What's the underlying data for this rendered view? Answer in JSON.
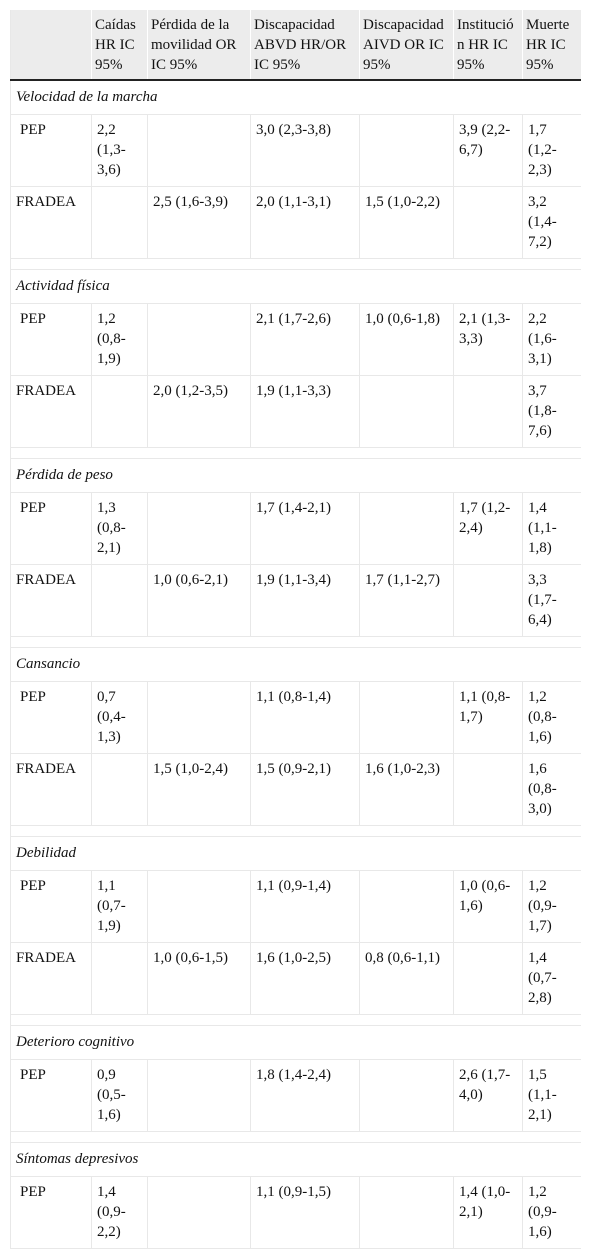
{
  "headers": [
    "",
    "Caídas HR IC 95%",
    "Pérdida de la movilidad OR IC 95%",
    "Discapacidad ABVD HR/OR IC 95%",
    "Discapacidad AIVD OR IC 95%",
    "Institución HR IC 95%",
    "Muerte HR IC 95%"
  ],
  "groups": [
    {
      "title": "Velocidad de la marcha",
      "rows": [
        {
          "label": "PEP",
          "cells": [
            "2,2 (1,3-3,6)",
            "",
            "3,0 (2,3-3,8)",
            "",
            "3,9 (2,2-6,7)",
            "1,7 (1,2-2,3)"
          ]
        },
        {
          "label": "FRADEA",
          "cells": [
            "",
            "2,5 (1,6-3,9)",
            "2,0 (1,1-3,1)",
            "1,5 (1,0-2,2)",
            "",
            "3,2 (1,4-7,2)"
          ]
        }
      ]
    },
    {
      "title": "Actividad física",
      "rows": [
        {
          "label": "PEP",
          "cells": [
            "1,2 (0,8-1,9)",
            "",
            "2,1 (1,7-2,6)",
            "1,0 (0,6-1,8)",
            "2,1 (1,3-3,3)",
            "2,2 (1,6-3,1)"
          ]
        },
        {
          "label": "FRADEA",
          "cells": [
            "",
            "2,0 (1,2-3,5)",
            "1,9 (1,1-3,3)",
            "",
            "",
            "3,7 (1,8-7,6)"
          ]
        }
      ]
    },
    {
      "title": "Pérdida de peso",
      "rows": [
        {
          "label": "PEP",
          "cells": [
            "1,3 (0,8-2,1)",
            "",
            "1,7 (1,4-2,1)",
            "",
            "1,7 (1,2-2,4)",
            "1,4 (1,1-1,8)"
          ]
        },
        {
          "label": "FRADEA",
          "cells": [
            "",
            "1,0 (0,6-2,1)",
            "1,9 (1,1-3,4)",
            "1,7 (1,1-2,7)",
            "",
            "3,3 (1,7-6,4)"
          ]
        }
      ]
    },
    {
      "title": "Cansancio",
      "rows": [
        {
          "label": "PEP",
          "cells": [
            "0,7 (0,4-1,3)",
            "",
            "1,1 (0,8-1,4)",
            "",
            "1,1 (0,8-1,7)",
            "1,2 (0,8-1,6)"
          ]
        },
        {
          "label": "FRADEA",
          "cells": [
            "",
            "1,5 (1,0-2,4)",
            "1,5 (0,9-2,1)",
            "1,6 (1,0-2,3)",
            "",
            "1,6 (0,8-3,0)"
          ]
        }
      ]
    },
    {
      "title": "Debilidad",
      "rows": [
        {
          "label": "PEP",
          "cells": [
            "1,1 (0,7-1,9)",
            "",
            "1,1 (0,9-1,4)",
            "",
            "1,0 (0,6-1,6)",
            "1,2 (0,9-1,7)"
          ]
        },
        {
          "label": "FRADEA",
          "cells": [
            "",
            "1,0 (0,6-1,5)",
            "1,6 (1,0-2,5)",
            "0,8 (0,6-1,1)",
            "",
            "1,4 (0,7-2,8)"
          ]
        }
      ]
    },
    {
      "title": "Deterioro cognitivo",
      "rows": [
        {
          "label": "PEP",
          "cells": [
            "0,9 (0,5-1,6)",
            "",
            "1,8 (1,4-2,4)",
            "",
            "2,6 (1,7-4,0)",
            "1,5 (1,1-2,1)"
          ]
        }
      ]
    },
    {
      "title": "Síntomas depresivos",
      "rows": [
        {
          "label": "PEP",
          "cells": [
            "1,4 (0,9-2,2)",
            "",
            "1,1 (0,9-1,5)",
            "",
            "1,4 (1,0-2,1)",
            "1,2 (0,9-1,6)"
          ]
        }
      ]
    }
  ]
}
